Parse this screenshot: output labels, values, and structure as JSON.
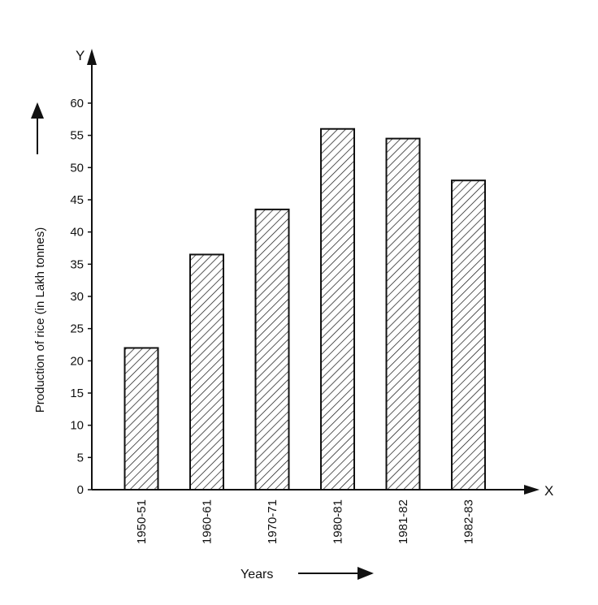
{
  "chart_data": {
    "type": "bar",
    "categories": [
      "1950-51",
      "1960-61",
      "1970-71",
      "1980-81",
      "1981-82",
      "1982-83"
    ],
    "values": [
      22,
      36.5,
      43.5,
      56,
      54.5,
      48
    ],
    "xlabel": "Years",
    "ylabel": "Production of rice (in Lakh tonnes)",
    "x_axis_letter": "X",
    "y_axis_letter": "Y",
    "ylim": [
      0,
      60
    ],
    "yticks": [
      "0",
      "5",
      "10",
      "15",
      "20",
      "25",
      "30",
      "35",
      "40",
      "45",
      "50",
      "55",
      "60"
    ],
    "grid": false,
    "bar_fill": "diagonal-hatch",
    "colors": {
      "ink": "#111111",
      "background": "#ffffff"
    }
  }
}
